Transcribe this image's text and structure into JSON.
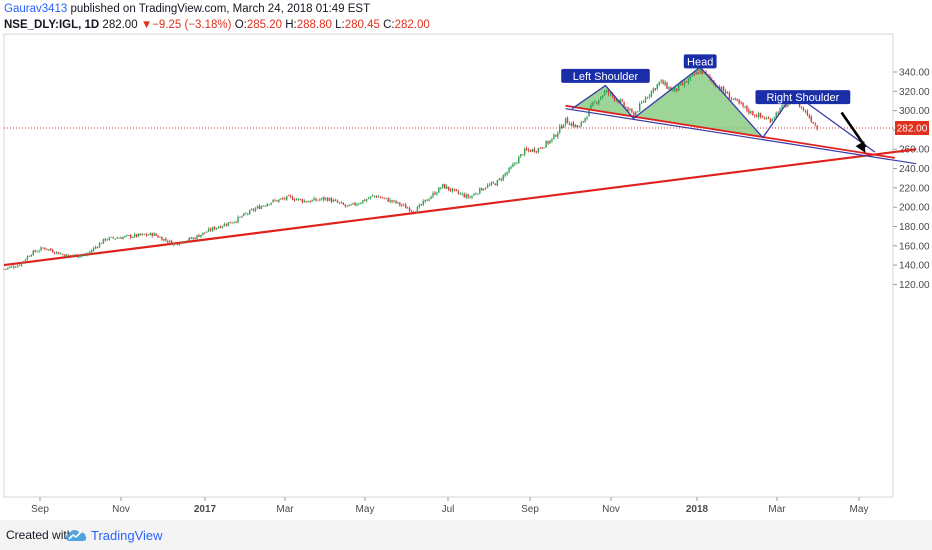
{
  "header": {
    "author": "Gaurav3413",
    "published_text": " published on TradingView.com, March 24, 2018 01:49 EST",
    "symbol": "NSE_DLY:IGL, 1D",
    "last": "282.00",
    "arrow": "▼",
    "change": "−9.25 (−3.18%)",
    "o_label": "O:",
    "o_val": "285.20",
    "h_label": "H:",
    "h_val": "288.80",
    "l_label": "L:",
    "l_val": "280.45",
    "c_label": "C:",
    "c_val": "282.00"
  },
  "footer": {
    "created": "Created with",
    "brand": "TradingView"
  },
  "colors": {
    "up": "#2ca453",
    "down": "#d93a3a",
    "trendline": "#e0201c",
    "neckline": "#3a3aa8",
    "pattern_fill": "#7cc576",
    "label_bg": "#1a2ea8",
    "price_badge": "#e0301e"
  },
  "chart_data": {
    "type": "candlestick",
    "symbol": "NSE_DLY:IGL",
    "interval": "1D",
    "ylim": [
      115,
      355
    ],
    "y_ticks": [
      120,
      140,
      160,
      180,
      200,
      220,
      240,
      260,
      280,
      300,
      320,
      340
    ],
    "y_tick_labels": [
      "120.00",
      "140.00",
      "160.00",
      "180.00",
      "200.00",
      "220.00",
      "240.00",
      "260.00",
      "280.00",
      "300.00",
      "320.00",
      "340.00"
    ],
    "x_ticks": [
      "Sep",
      "Nov",
      "2017",
      "Mar",
      "May",
      "Jul",
      "Sep",
      "Nov",
      "2018",
      "Mar",
      "May"
    ],
    "last_price": 282.0,
    "last_price_label": "282.00",
    "price_anchors": [
      {
        "date": "2016-07-21",
        "price": 136
      },
      {
        "date": "2016-08-01",
        "price": 140
      },
      {
        "date": "2016-08-10",
        "price": 152
      },
      {
        "date": "2016-08-20",
        "price": 158
      },
      {
        "date": "2016-09-05",
        "price": 150
      },
      {
        "date": "2016-09-20",
        "price": 150
      },
      {
        "date": "2016-10-05",
        "price": 167
      },
      {
        "date": "2016-10-25",
        "price": 170
      },
      {
        "date": "2016-11-10",
        "price": 172
      },
      {
        "date": "2016-11-25",
        "price": 162
      },
      {
        "date": "2016-12-10",
        "price": 168
      },
      {
        "date": "2016-12-25",
        "price": 178
      },
      {
        "date": "2017-01-10",
        "price": 186
      },
      {
        "date": "2017-01-25",
        "price": 198
      },
      {
        "date": "2017-02-05",
        "price": 205
      },
      {
        "date": "2017-02-20",
        "price": 210
      },
      {
        "date": "2017-03-05",
        "price": 206
      },
      {
        "date": "2017-03-20",
        "price": 209
      },
      {
        "date": "2017-04-05",
        "price": 200
      },
      {
        "date": "2017-04-25",
        "price": 212
      },
      {
        "date": "2017-05-10",
        "price": 205
      },
      {
        "date": "2017-05-25",
        "price": 196
      },
      {
        "date": "2017-06-05",
        "price": 210
      },
      {
        "date": "2017-06-15",
        "price": 222
      },
      {
        "date": "2017-06-25",
        "price": 215
      },
      {
        "date": "2017-07-05",
        "price": 210
      },
      {
        "date": "2017-07-15",
        "price": 220
      },
      {
        "date": "2017-07-25",
        "price": 225
      },
      {
        "date": "2017-08-05",
        "price": 240
      },
      {
        "date": "2017-08-15",
        "price": 258
      },
      {
        "date": "2017-08-25",
        "price": 260
      },
      {
        "date": "2017-09-05",
        "price": 270
      },
      {
        "date": "2017-09-15",
        "price": 290
      },
      {
        "date": "2017-09-25",
        "price": 282
      },
      {
        "date": "2017-10-05",
        "price": 305
      },
      {
        "date": "2017-10-15",
        "price": 320
      },
      {
        "date": "2017-10-25",
        "price": 310
      },
      {
        "date": "2017-11-05",
        "price": 295
      },
      {
        "date": "2017-11-15",
        "price": 315
      },
      {
        "date": "2017-11-25",
        "price": 330
      },
      {
        "date": "2017-12-05",
        "price": 320
      },
      {
        "date": "2017-12-15",
        "price": 330
      },
      {
        "date": "2017-12-25",
        "price": 342
      },
      {
        "date": "2018-01-05",
        "price": 328
      },
      {
        "date": "2018-01-20",
        "price": 310
      },
      {
        "date": "2018-02-01",
        "price": 298
      },
      {
        "date": "2018-02-15",
        "price": 290
      },
      {
        "date": "2018-02-22",
        "price": 300
      },
      {
        "date": "2018-03-05",
        "price": 312
      },
      {
        "date": "2018-03-15",
        "price": 297
      },
      {
        "date": "2018-03-23",
        "price": 282
      }
    ],
    "trendline": {
      "start": {
        "date": "2016-07-21",
        "price": 140
      },
      "end": {
        "date": "2018-06-05",
        "price": 260
      }
    },
    "neckline": {
      "start": {
        "date": "2017-09-15",
        "price": 305
      },
      "end": {
        "date": "2018-05-20",
        "price": 251
      }
    },
    "neckline_ext": {
      "start": {
        "date": "2017-09-15",
        "price": 302
      },
      "end": {
        "date": "2018-06-05",
        "price": 245
      }
    },
    "hs_lines": [
      {
        "date": "2017-09-20",
        "price": 302
      },
      {
        "date": "2017-10-15",
        "price": 326
      },
      {
        "date": "2017-11-05",
        "price": 292
      },
      {
        "date": "2017-12-25",
        "price": 345
      },
      {
        "date": "2018-02-10",
        "price": 272
      },
      {
        "date": "2018-03-05",
        "price": 318
      },
      {
        "date": "2018-05-05",
        "price": 257
      }
    ],
    "arrow": {
      "start": {
        "date": "2018-04-10",
        "price": 298
      },
      "end": {
        "date": "2018-04-28",
        "price": 256
      }
    },
    "annotations": [
      {
        "text": "Head",
        "date": "2017-12-25",
        "price": 351
      },
      {
        "text": "Left Shoulder",
        "date": "2017-10-15",
        "price": 336
      },
      {
        "text": "Right Shoulder",
        "date": "2018-03-12",
        "price": 314
      }
    ]
  }
}
